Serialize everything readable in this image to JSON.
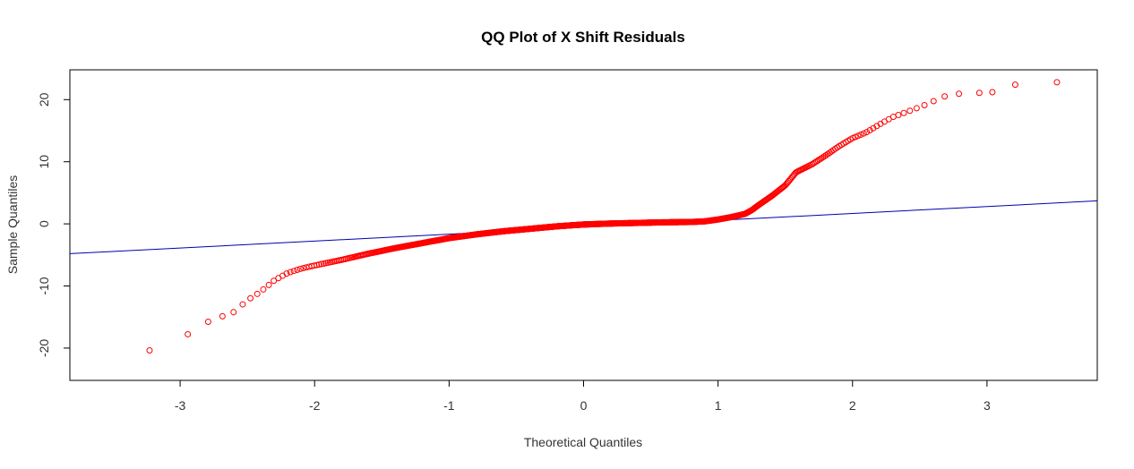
{
  "chart_data": {
    "type": "scatter",
    "title": "QQ Plot of X Shift Residuals",
    "xlabel": "Theoretical Quantiles",
    "ylabel": "Sample Quantiles",
    "xlim": [
      -3.82,
      3.82
    ],
    "ylim": [
      -25.2,
      24.8
    ],
    "x_ticks": [
      -3,
      -2,
      -1,
      0,
      1,
      2,
      3
    ],
    "y_ticks": [
      -20,
      -10,
      0,
      10,
      20
    ],
    "x_tick_labels": [
      "-3",
      "-2",
      "-1",
      "0",
      "1",
      "2",
      "3"
    ],
    "y_tick_labels": [
      "-20",
      "-10",
      "0",
      "10",
      "20"
    ],
    "grid": false,
    "series": [
      {
        "marker": "open-circle",
        "color": "#ff0000",
        "curve_points": [
          {
            "x": -3.52,
            "y": -23.3
          },
          {
            "x": -3.21,
            "y": -20.2
          },
          {
            "x": -3.04,
            "y": -18.5
          },
          {
            "x": -2.92,
            "y": -17.6
          },
          {
            "x": -2.83,
            "y": -16.1
          },
          {
            "x": -2.75,
            "y": -15.4
          },
          {
            "x": -2.6,
            "y": -14.2
          },
          {
            "x": -2.5,
            "y": -12.3
          },
          {
            "x": -2.4,
            "y": -10.9
          },
          {
            "x": -2.3,
            "y": -9.1
          },
          {
            "x": -2.2,
            "y": -7.9
          },
          {
            "x": -2.1,
            "y": -7.2
          },
          {
            "x": -2.0,
            "y": -6.7
          },
          {
            "x": -1.8,
            "y": -5.8
          },
          {
            "x": -1.6,
            "y": -4.8
          },
          {
            "x": -1.4,
            "y": -3.9
          },
          {
            "x": -1.2,
            "y": -3.1
          },
          {
            "x": -1.0,
            "y": -2.3
          },
          {
            "x": -0.8,
            "y": -1.7
          },
          {
            "x": -0.6,
            "y": -1.2
          },
          {
            "x": -0.4,
            "y": -0.8
          },
          {
            "x": -0.2,
            "y": -0.4
          },
          {
            "x": 0.0,
            "y": -0.1
          },
          {
            "x": 0.2,
            "y": 0.05
          },
          {
            "x": 0.4,
            "y": 0.15
          },
          {
            "x": 0.6,
            "y": 0.25
          },
          {
            "x": 0.8,
            "y": 0.3
          },
          {
            "x": 0.9,
            "y": 0.4
          },
          {
            "x": 1.0,
            "y": 0.7
          },
          {
            "x": 1.1,
            "y": 1.1
          },
          {
            "x": 1.2,
            "y": 1.6
          },
          {
            "x": 1.25,
            "y": 2.2
          },
          {
            "x": 1.3,
            "y": 3.0
          },
          {
            "x": 1.4,
            "y": 4.5
          },
          {
            "x": 1.5,
            "y": 6.2
          },
          {
            "x": 1.58,
            "y": 8.3
          },
          {
            "x": 1.7,
            "y": 9.6
          },
          {
            "x": 1.8,
            "y": 11.0
          },
          {
            "x": 1.9,
            "y": 12.5
          },
          {
            "x": 2.0,
            "y": 13.8
          },
          {
            "x": 2.1,
            "y": 14.7
          },
          {
            "x": 2.2,
            "y": 16.0
          },
          {
            "x": 2.3,
            "y": 17.2
          },
          {
            "x": 2.4,
            "y": 18.0
          },
          {
            "x": 2.5,
            "y": 18.8
          },
          {
            "x": 2.58,
            "y": 19.5
          },
          {
            "x": 2.65,
            "y": 20.3
          },
          {
            "x": 2.75,
            "y": 20.9
          },
          {
            "x": 2.85,
            "y": 21.0
          },
          {
            "x": 2.95,
            "y": 21.1
          },
          {
            "x": 3.0,
            "y": 21.2
          }
        ],
        "outliers": [
          {
            "x": 3.04,
            "y": 21.2
          },
          {
            "x": 3.21,
            "y": 22.4
          },
          {
            "x": 3.52,
            "y": 22.8
          }
        ],
        "point_count": 1000
      }
    ],
    "reference_line": {
      "color": "#0000aa",
      "points": [
        {
          "x": -3.82,
          "y": -4.8
        },
        {
          "x": 3.82,
          "y": 3.7
        }
      ]
    }
  }
}
